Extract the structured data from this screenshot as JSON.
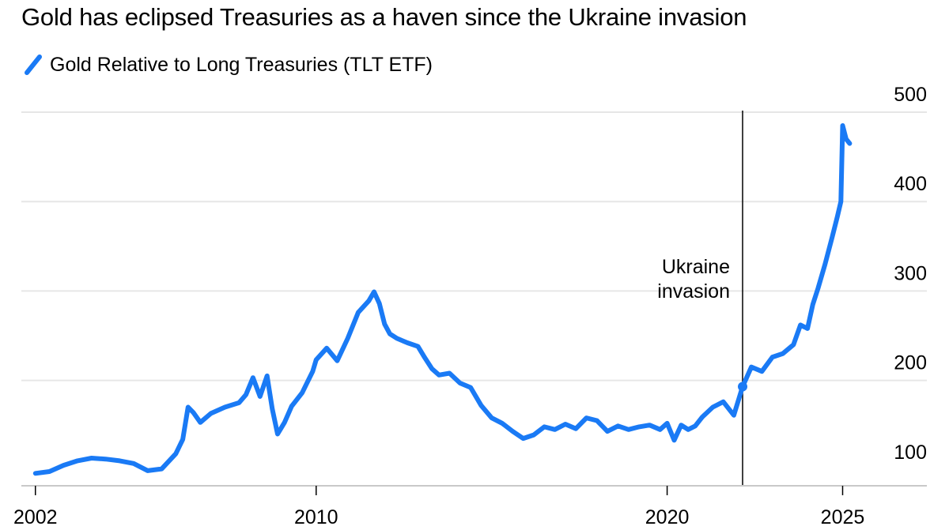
{
  "colors": {
    "series": "#1A7AF5",
    "gridline": "#E6E6E6",
    "axis": "#C9C9C9",
    "annotation_line": "#000000"
  },
  "chart_data": {
    "type": "line",
    "title": "Gold has eclipsed Treasuries as a haven since the Ukraine invasion",
    "legend": [
      {
        "label": "Gold Relative to Long Treasuries (TLT ETF)",
        "icon": "line-swatch-icon"
      }
    ],
    "xlabel": "",
    "ylabel": "",
    "xlim": [
      2001.6,
      2027.4
    ],
    "ylim": [
      83,
      500
    ],
    "x_ticks": [
      2002,
      2010,
      2020,
      2025
    ],
    "y_ticks": [
      100,
      200,
      300,
      400,
      500
    ],
    "y_axis_position": "right",
    "grid": "horizontal",
    "annotation": {
      "label_lines": [
        "Ukraine",
        "invasion"
      ],
      "x": 2022.15,
      "marker_y": 193
    },
    "series": [
      {
        "name": "Gold Relative to Long Treasuries (TLT ETF)",
        "x": [
          2002.0,
          2002.4,
          2002.8,
          2003.2,
          2003.6,
          2004.0,
          2004.4,
          2004.8,
          2005.2,
          2005.6,
          2006.0,
          2006.2,
          2006.35,
          2006.5,
          2006.7,
          2007.0,
          2007.4,
          2007.8,
          2008.0,
          2008.2,
          2008.4,
          2008.6,
          2008.75,
          2008.9,
          2009.1,
          2009.3,
          2009.6,
          2009.9,
          2010.0,
          2010.3,
          2010.6,
          2010.9,
          2011.2,
          2011.5,
          2011.65,
          2011.8,
          2011.95,
          2012.1,
          2012.3,
          2012.6,
          2012.9,
          2013.1,
          2013.3,
          2013.5,
          2013.8,
          2014.1,
          2014.4,
          2014.7,
          2015.0,
          2015.3,
          2015.6,
          2015.9,
          2016.2,
          2016.5,
          2016.8,
          2017.1,
          2017.4,
          2017.7,
          2018.0,
          2018.3,
          2018.6,
          2018.9,
          2019.2,
          2019.5,
          2019.8,
          2020.0,
          2020.2,
          2020.4,
          2020.6,
          2020.8,
          2021.0,
          2021.3,
          2021.6,
          2021.9,
          2022.15,
          2022.4,
          2022.7,
          2023.0,
          2023.3,
          2023.6,
          2023.8,
          2024.0,
          2024.15,
          2024.3,
          2024.5,
          2024.7,
          2024.85,
          2024.95,
          2025.0,
          2025.1,
          2025.2
        ],
        "values": [
          96,
          98,
          105,
          110,
          113,
          112,
          110,
          107,
          99,
          101,
          118,
          134,
          170,
          164,
          153,
          163,
          170,
          175,
          184,
          203,
          182,
          205,
          168,
          140,
          153,
          171,
          186,
          210,
          223,
          236,
          222,
          247,
          276,
          289,
          299,
          286,
          263,
          252,
          247,
          242,
          238,
          225,
          213,
          206,
          208,
          197,
          192,
          172,
          158,
          152,
          143,
          135,
          139,
          148,
          145,
          151,
          146,
          158,
          155,
          143,
          149,
          145,
          148,
          150,
          145,
          152,
          133,
          150,
          145,
          149,
          159,
          170,
          176,
          161,
          193,
          215,
          210,
          226,
          230,
          240,
          262,
          258,
          285,
          303,
          330,
          360,
          383,
          400,
          485,
          470,
          465
        ]
      }
    ]
  }
}
